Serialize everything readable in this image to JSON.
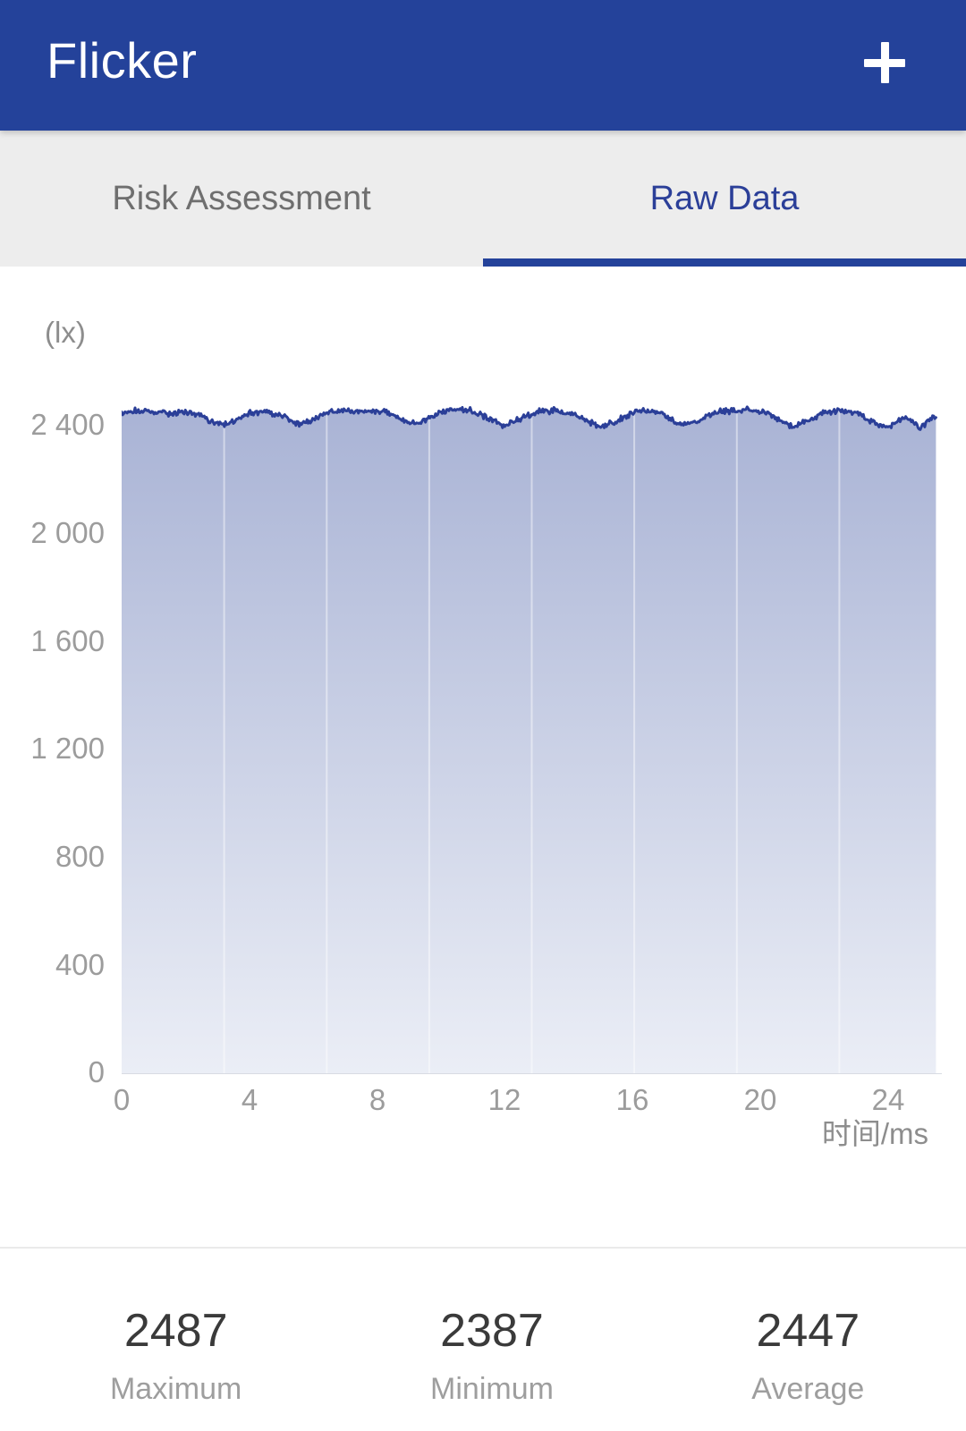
{
  "header": {
    "title": "Flicker",
    "add_icon": "plus-icon"
  },
  "tabs": [
    {
      "label": "Risk Assessment",
      "active": false
    },
    {
      "label": "Raw Data",
      "active": true
    }
  ],
  "chart_data": {
    "type": "area",
    "title": "Flicker raw illuminance waveform",
    "unit_label": "(lx)",
    "ylabel": "(lx)",
    "xlabel": "时间/ms",
    "xlim": [
      0,
      25.5
    ],
    "ylim": [
      0,
      2555
    ],
    "grid": "vertical-seams-only",
    "legend": "none",
    "y_ticks": [
      2400,
      2000,
      1600,
      1200,
      800,
      400,
      0
    ],
    "ytick_labels": [
      "2 400",
      "2 000",
      "1 600",
      "1 200",
      "800",
      "400",
      "0"
    ],
    "x_ticks": [
      0,
      4,
      8,
      12,
      16,
      20,
      24
    ],
    "xtick_labels": [
      "0",
      "4",
      "8",
      "12",
      "16",
      "20",
      "24"
    ],
    "line_color": "#2b3f98",
    "fill_top_color": "#a9b3d5",
    "fill_bottom_color": "#ebeef6",
    "baseline_color": "#d8dbe3",
    "noise_amplitude_lx": 13,
    "series": [
      {
        "name": "illuminance_lx",
        "x_start": 0,
        "x_step": 0.5,
        "values": [
          2450,
          2458,
          2452,
          2448,
          2455,
          2440,
          2405,
          2418,
          2450,
          2455,
          2440,
          2408,
          2425,
          2455,
          2460,
          2455,
          2458,
          2445,
          2410,
          2420,
          2455,
          2462,
          2458,
          2430,
          2402,
          2428,
          2455,
          2460,
          2450,
          2425,
          2398,
          2420,
          2452,
          2460,
          2445,
          2405,
          2415,
          2450,
          2458,
          2462,
          2455,
          2430,
          2400,
          2420,
          2452,
          2458,
          2450,
          2418,
          2395,
          2440,
          2398,
          2436
        ]
      }
    ],
    "stats": {
      "max": 2487,
      "min": 2387,
      "avg": 2447
    }
  },
  "summary": [
    {
      "value": "2487",
      "label": "Maximum"
    },
    {
      "value": "2387",
      "label": "Minimum"
    },
    {
      "value": "2447",
      "label": "Average"
    }
  ],
  "colors": {
    "appbar": "#24429a",
    "tab_active": "#2b3f98",
    "tab_inactive": "#6f6f6f",
    "tabbar_bg": "#ededed",
    "axis_text": "#9c9c9c",
    "stat_value": "#3a3a3a",
    "stat_label": "#9e9e9e"
  }
}
